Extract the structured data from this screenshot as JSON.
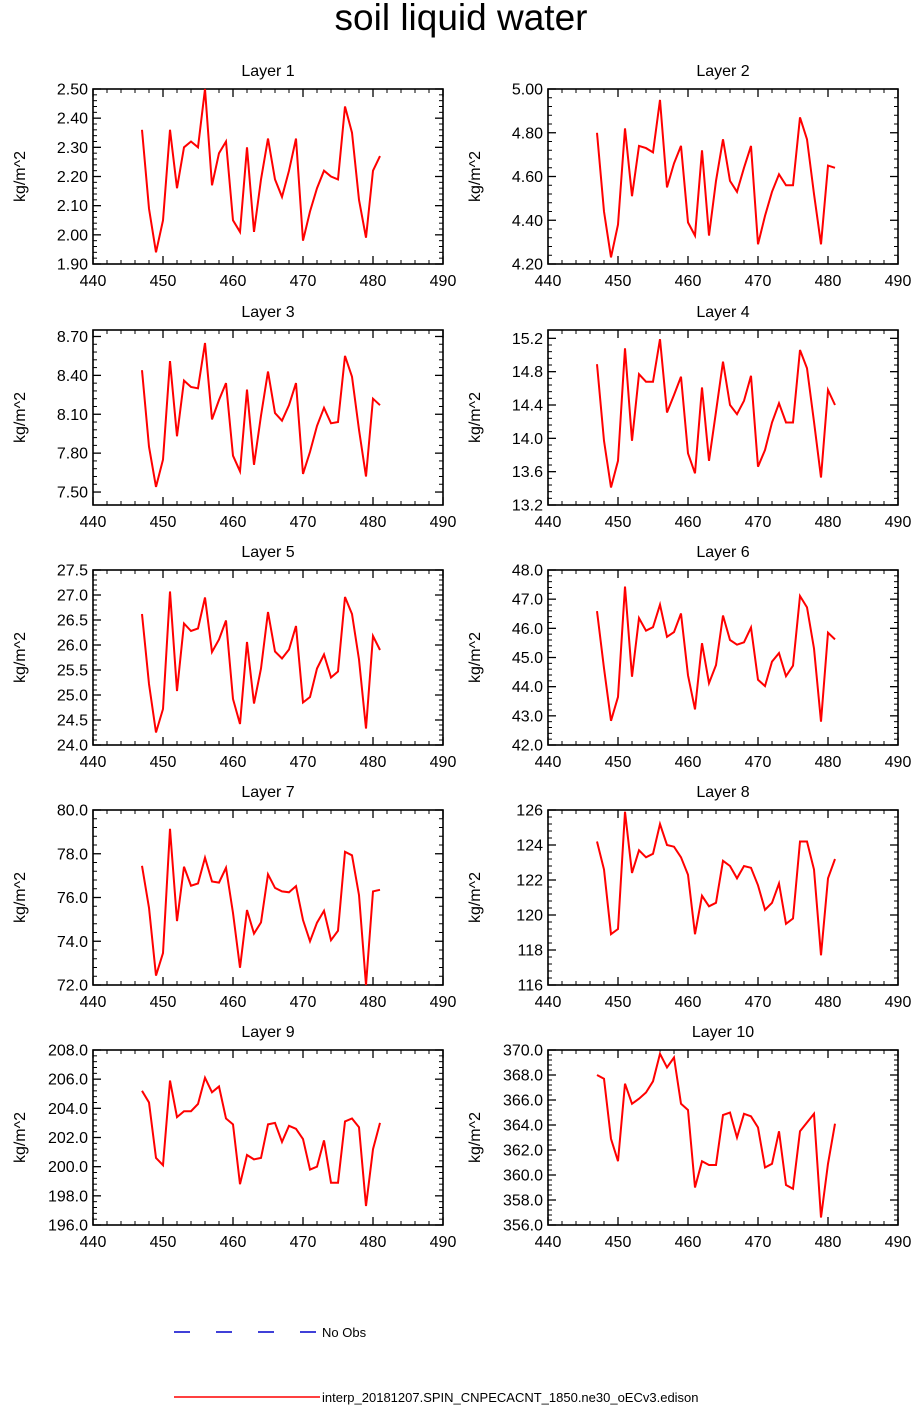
{
  "figure": {
    "title": "soil liquid water"
  },
  "legend": {
    "entries": [
      {
        "label": "No Obs",
        "color": "#0000cc",
        "style": "dashed"
      },
      {
        "label": "interp_20181207.SPIN_CNPECACNT_1850.ne30_oECv3.edison",
        "color": "#ff0000",
        "style": "solid"
      }
    ]
  },
  "chart_data": [
    {
      "type": "line",
      "title": "Layer 1",
      "xlabel": "",
      "ylabel": "kg/m^2",
      "xlim": [
        440,
        490
      ],
      "ylim": [
        1.9,
        2.5
      ],
      "xticks": [
        440,
        450,
        460,
        470,
        480,
        490
      ],
      "yticks": [
        "1.90",
        "2.00",
        "2.10",
        "2.20",
        "2.30",
        "2.40",
        "2.50"
      ],
      "x": [
        447,
        448,
        449,
        450,
        451,
        452,
        453,
        454,
        455,
        456,
        457,
        458,
        459,
        460,
        461,
        462,
        463,
        464,
        465,
        466,
        467,
        468,
        469,
        470,
        471,
        472,
        473,
        474,
        475,
        476,
        477,
        478,
        479,
        480,
        481
      ],
      "series": [
        {
          "color": "#ff0000",
          "values": [
            2.36,
            2.09,
            1.94,
            2.05,
            2.36,
            2.16,
            2.3,
            2.32,
            2.3,
            2.5,
            2.17,
            2.28,
            2.32,
            2.05,
            2.01,
            2.3,
            2.01,
            2.19,
            2.33,
            2.19,
            2.13,
            2.22,
            2.33,
            1.98,
            2.08,
            2.16,
            2.22,
            2.2,
            2.19,
            2.44,
            2.35,
            2.12,
            1.99,
            2.22,
            2.27
          ]
        }
      ]
    },
    {
      "type": "line",
      "title": "Layer 2",
      "xlabel": "",
      "ylabel": "kg/m^2",
      "xlim": [
        440,
        490
      ],
      "ylim": [
        4.2,
        5.0
      ],
      "xticks": [
        440,
        450,
        460,
        470,
        480,
        490
      ],
      "yticks": [
        "4.20",
        "4.40",
        "4.60",
        "4.80",
        "5.00"
      ],
      "x": [
        447,
        448,
        449,
        450,
        451,
        452,
        453,
        454,
        455,
        456,
        457,
        458,
        459,
        460,
        461,
        462,
        463,
        464,
        465,
        466,
        467,
        468,
        469,
        470,
        471,
        472,
        473,
        474,
        475,
        476,
        477,
        478,
        479,
        480,
        481
      ],
      "series": [
        {
          "color": "#ff0000",
          "values": [
            4.8,
            4.44,
            4.23,
            4.38,
            4.82,
            4.51,
            4.74,
            4.73,
            4.71,
            4.95,
            4.55,
            4.66,
            4.74,
            4.39,
            4.33,
            4.72,
            4.33,
            4.58,
            4.77,
            4.58,
            4.53,
            4.64,
            4.74,
            4.29,
            4.42,
            4.53,
            4.61,
            4.56,
            4.56,
            4.87,
            4.77,
            4.52,
            4.29,
            4.65,
            4.64
          ]
        }
      ]
    },
    {
      "type": "line",
      "title": "Layer 3",
      "xlabel": "",
      "ylabel": "kg/m^2",
      "xlim": [
        440,
        490
      ],
      "ylim": [
        7.4,
        8.75
      ],
      "xticks": [
        440,
        450,
        460,
        470,
        480,
        490
      ],
      "yticks": [
        "7.50",
        "7.80",
        "8.10",
        "8.40",
        "8.70"
      ],
      "x": [
        447,
        448,
        449,
        450,
        451,
        452,
        453,
        454,
        455,
        456,
        457,
        458,
        459,
        460,
        461,
        462,
        463,
        464,
        465,
        466,
        467,
        468,
        469,
        470,
        471,
        472,
        473,
        474,
        475,
        476,
        477,
        478,
        479,
        480,
        481
      ],
      "series": [
        {
          "color": "#ff0000",
          "values": [
            8.44,
            7.85,
            7.54,
            7.75,
            8.51,
            7.93,
            8.36,
            8.31,
            8.3,
            8.65,
            8.06,
            8.21,
            8.34,
            7.78,
            7.66,
            8.29,
            7.71,
            8.09,
            8.43,
            8.11,
            8.05,
            8.17,
            8.34,
            7.64,
            7.81,
            8.01,
            8.15,
            8.03,
            8.04,
            8.55,
            8.39,
            7.98,
            7.62,
            8.22,
            8.17
          ]
        }
      ]
    },
    {
      "type": "line",
      "title": "Layer 4",
      "xlabel": "",
      "ylabel": "kg/m^2",
      "xlim": [
        440,
        490
      ],
      "ylim": [
        13.2,
        15.3
      ],
      "xticks": [
        440,
        450,
        460,
        470,
        480,
        490
      ],
      "yticks": [
        "13.2",
        "13.6",
        "14.0",
        "14.4",
        "14.8",
        "15.2"
      ],
      "x": [
        447,
        448,
        449,
        450,
        451,
        452,
        453,
        454,
        455,
        456,
        457,
        458,
        459,
        460,
        461,
        462,
        463,
        464,
        465,
        466,
        467,
        468,
        469,
        470,
        471,
        472,
        473,
        474,
        475,
        476,
        477,
        478,
        479,
        480,
        481
      ],
      "series": [
        {
          "color": "#ff0000",
          "values": [
            14.89,
            13.97,
            13.41,
            13.73,
            15.08,
            13.97,
            14.77,
            14.68,
            14.68,
            15.19,
            14.31,
            14.52,
            14.74,
            13.82,
            13.58,
            14.61,
            13.73,
            14.32,
            14.92,
            14.4,
            14.29,
            14.45,
            14.75,
            13.66,
            13.86,
            14.19,
            14.42,
            14.19,
            14.19,
            15.06,
            14.84,
            14.2,
            13.53,
            14.58,
            14.4
          ]
        }
      ]
    },
    {
      "type": "line",
      "title": "Layer 5",
      "xlabel": "",
      "ylabel": "kg/m^2",
      "xlim": [
        440,
        490
      ],
      "ylim": [
        24.0,
        27.5
      ],
      "xticks": [
        440,
        450,
        460,
        470,
        480,
        490
      ],
      "yticks": [
        "24.0",
        "24.5",
        "25.0",
        "25.5",
        "26.0",
        "26.5",
        "27.0",
        "27.5"
      ],
      "x": [
        447,
        448,
        449,
        450,
        451,
        452,
        453,
        454,
        455,
        456,
        457,
        458,
        459,
        460,
        461,
        462,
        463,
        464,
        465,
        466,
        467,
        468,
        469,
        470,
        471,
        472,
        473,
        474,
        475,
        476,
        477,
        478,
        479,
        480,
        481
      ],
      "series": [
        {
          "color": "#ff0000",
          "values": [
            26.62,
            25.22,
            24.25,
            24.72,
            27.07,
            25.08,
            26.43,
            26.28,
            26.33,
            26.95,
            25.86,
            26.11,
            26.49,
            24.92,
            24.42,
            26.06,
            24.83,
            25.53,
            26.66,
            25.87,
            25.73,
            25.91,
            26.38,
            24.85,
            24.96,
            25.53,
            25.81,
            25.35,
            25.47,
            26.96,
            26.62,
            25.71,
            24.33,
            26.18,
            25.9
          ]
        }
      ]
    },
    {
      "type": "line",
      "title": "Layer 6",
      "xlabel": "",
      "ylabel": "kg/m^2",
      "xlim": [
        440,
        490
      ],
      "ylim": [
        42.0,
        48.0
      ],
      "xticks": [
        440,
        450,
        460,
        470,
        480,
        490
      ],
      "yticks": [
        "42.0",
        "43.0",
        "44.0",
        "45.0",
        "46.0",
        "47.0",
        "48.0"
      ],
      "x": [
        447,
        448,
        449,
        450,
        451,
        452,
        453,
        454,
        455,
        456,
        457,
        458,
        459,
        460,
        461,
        462,
        463,
        464,
        465,
        466,
        467,
        468,
        469,
        470,
        471,
        472,
        473,
        474,
        475,
        476,
        477,
        478,
        479,
        480,
        481
      ],
      "series": [
        {
          "color": "#ff0000",
          "values": [
            46.59,
            44.63,
            42.83,
            43.65,
            47.43,
            44.34,
            46.35,
            45.92,
            46.04,
            46.81,
            45.71,
            45.87,
            46.51,
            44.39,
            43.22,
            45.49,
            44.12,
            44.74,
            46.44,
            45.6,
            45.44,
            45.52,
            46.03,
            44.24,
            44.02,
            44.86,
            45.15,
            44.36,
            44.72,
            47.11,
            46.72,
            45.31,
            42.8,
            45.85,
            45.62
          ]
        }
      ]
    },
    {
      "type": "line",
      "title": "Layer 7",
      "xlabel": "",
      "ylabel": "kg/m^2",
      "xlim": [
        440,
        490
      ],
      "ylim": [
        72.0,
        80.0
      ],
      "xticks": [
        440,
        450,
        460,
        470,
        480,
        490
      ],
      "yticks": [
        "72.0",
        "74.0",
        "76.0",
        "78.0",
        "80.0"
      ],
      "x": [
        447,
        448,
        449,
        450,
        451,
        452,
        453,
        454,
        455,
        456,
        457,
        458,
        459,
        460,
        461,
        462,
        463,
        464,
        465,
        466,
        467,
        468,
        469,
        470,
        471,
        472,
        473,
        474,
        475,
        476,
        477,
        478,
        479,
        480,
        481
      ],
      "series": [
        {
          "color": "#ff0000",
          "values": [
            77.45,
            75.53,
            72.43,
            73.46,
            79.14,
            74.92,
            77.41,
            76.54,
            76.64,
            77.82,
            76.73,
            76.68,
            77.36,
            75.29,
            72.79,
            75.43,
            74.35,
            74.86,
            77.06,
            76.44,
            76.28,
            76.24,
            76.52,
            74.97,
            74.0,
            74.85,
            75.39,
            74.05,
            74.48,
            78.09,
            77.93,
            76.11,
            72.0,
            76.28,
            76.35
          ]
        }
      ]
    },
    {
      "type": "line",
      "title": "Layer 8",
      "xlabel": "",
      "ylabel": "kg/m^2",
      "xlim": [
        440,
        490
      ],
      "ylim": [
        116,
        126
      ],
      "xticks": [
        440,
        450,
        460,
        470,
        480,
        490
      ],
      "yticks": [
        "116",
        "118",
        "120",
        "122",
        "124",
        "126"
      ],
      "x": [
        447,
        448,
        449,
        450,
        451,
        452,
        453,
        454,
        455,
        456,
        457,
        458,
        459,
        460,
        461,
        462,
        463,
        464,
        465,
        466,
        467,
        468,
        469,
        470,
        471,
        472,
        473,
        474,
        475,
        476,
        477,
        478,
        479,
        480,
        481
      ],
      "series": [
        {
          "color": "#ff0000",
          "values": [
            124.2,
            122.6,
            118.9,
            119.2,
            125.9,
            122.4,
            123.7,
            123.3,
            123.5,
            125.2,
            124.0,
            123.9,
            123.3,
            122.3,
            118.9,
            121.1,
            120.5,
            120.7,
            123.1,
            122.8,
            122.1,
            122.8,
            122.7,
            121.7,
            120.3,
            120.7,
            121.8,
            119.5,
            119.8,
            124.2,
            124.2,
            122.6,
            117.7,
            122.1,
            123.2
          ]
        }
      ]
    },
    {
      "type": "line",
      "title": "Layer 9",
      "xlabel": "",
      "ylabel": "kg/m^2",
      "xlim": [
        440,
        490
      ],
      "ylim": [
        196.0,
        208.0
      ],
      "xticks": [
        440,
        450,
        460,
        470,
        480,
        490
      ],
      "yticks": [
        "196.0",
        "198.0",
        "200.0",
        "202.0",
        "204.0",
        "206.0",
        "208.0"
      ],
      "x": [
        447,
        448,
        449,
        450,
        451,
        452,
        453,
        454,
        455,
        456,
        457,
        458,
        459,
        460,
        461,
        462,
        463,
        464,
        465,
        466,
        467,
        468,
        469,
        470,
        471,
        472,
        473,
        474,
        475,
        476,
        477,
        478,
        479,
        480,
        481
      ],
      "series": [
        {
          "color": "#ff0000",
          "values": [
            205.2,
            204.4,
            200.6,
            200.1,
            205.9,
            203.4,
            203.8,
            203.8,
            204.3,
            206.1,
            205.1,
            205.5,
            203.3,
            202.9,
            198.8,
            200.8,
            200.5,
            200.6,
            202.9,
            203.0,
            201.7,
            202.8,
            202.6,
            201.9,
            199.8,
            200.0,
            201.8,
            198.9,
            198.9,
            203.1,
            203.3,
            202.7,
            197.3,
            201.2,
            203.0
          ]
        }
      ]
    },
    {
      "type": "line",
      "title": "Layer 10",
      "xlabel": "",
      "ylabel": "kg/m^2",
      "xlim": [
        440,
        490
      ],
      "ylim": [
        356.0,
        370.0
      ],
      "xticks": [
        440,
        450,
        460,
        470,
        480,
        490
      ],
      "yticks": [
        "356.0",
        "358.0",
        "360.0",
        "362.0",
        "364.0",
        "366.0",
        "368.0",
        "370.0"
      ],
      "x": [
        447,
        448,
        449,
        450,
        451,
        452,
        453,
        454,
        455,
        456,
        457,
        458,
        459,
        460,
        461,
        462,
        463,
        464,
        465,
        466,
        467,
        468,
        469,
        470,
        471,
        472,
        473,
        474,
        475,
        476,
        477,
        478,
        479,
        480,
        481
      ],
      "series": [
        {
          "color": "#ff0000",
          "values": [
            368.0,
            367.7,
            362.9,
            361.1,
            367.3,
            365.7,
            366.1,
            366.6,
            367.5,
            369.7,
            368.6,
            369.4,
            365.7,
            365.2,
            359.0,
            361.1,
            360.8,
            360.8,
            364.8,
            365.0,
            363.0,
            364.9,
            364.7,
            363.8,
            360.6,
            360.9,
            363.5,
            359.2,
            358.9,
            363.5,
            364.2,
            364.9,
            356.6,
            360.9,
            364.1
          ]
        }
      ]
    }
  ]
}
